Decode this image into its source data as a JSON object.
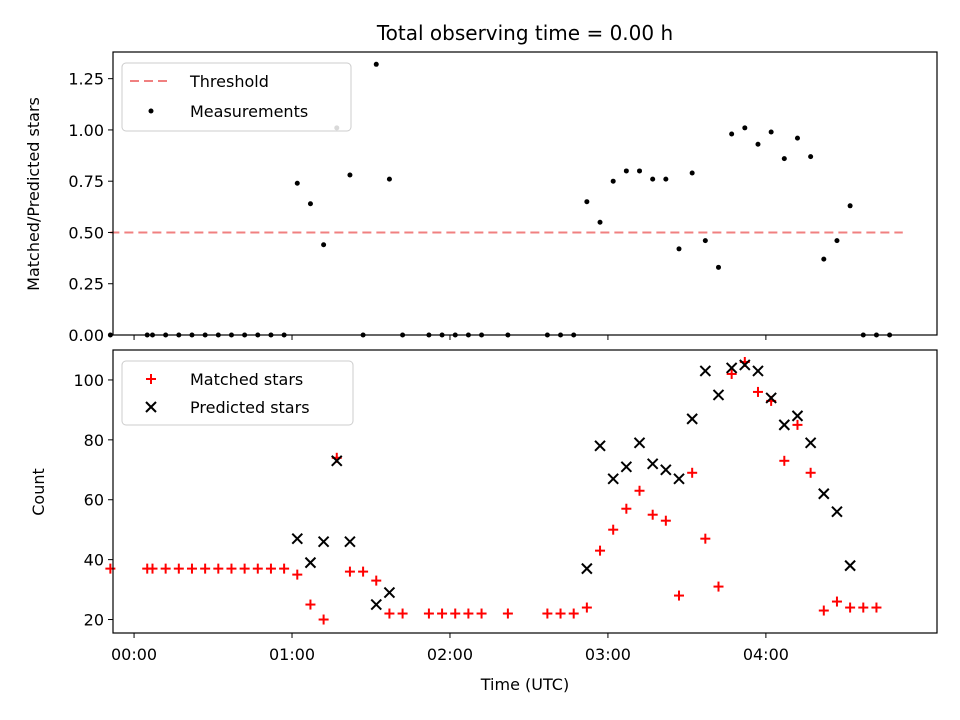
{
  "title": "Total observing time = 0.00 h",
  "colors": {
    "threshold": "#f08080",
    "measurement": "#000000",
    "matched": "#ff0000",
    "predicted": "#000000"
  },
  "chart_data": [
    {
      "type": "scatter",
      "ylabel": "Matched/Predicted stars",
      "xlim": [
        "23:52",
        "05:05"
      ],
      "ylim": [
        0,
        1.38
      ],
      "yticks": [
        "0.00",
        "0.25",
        "0.50",
        "0.75",
        "1.00",
        "1.25"
      ],
      "legend": {
        "position": "top-left",
        "entries": [
          "Threshold",
          "Measurements"
        ]
      },
      "threshold": {
        "name": "Threshold",
        "value": 0.5,
        "x_range": [
          "23:51",
          "04:52"
        ]
      },
      "series": [
        {
          "name": "Measurements",
          "points": [
            [
              "23:51",
              0
            ],
            [
              "00:05",
              0
            ],
            [
              "00:07",
              0
            ],
            [
              "00:12",
              0
            ],
            [
              "00:17",
              0
            ],
            [
              "00:22",
              0
            ],
            [
              "00:27",
              0
            ],
            [
              "00:32",
              0
            ],
            [
              "00:37",
              0
            ],
            [
              "00:42",
              0
            ],
            [
              "00:47",
              0
            ],
            [
              "00:52",
              0
            ],
            [
              "00:57",
              0
            ],
            [
              "01:02",
              0.74
            ],
            [
              "01:07",
              0.64
            ],
            [
              "01:12",
              0.44
            ],
            [
              "01:17",
              1.01
            ],
            [
              "01:22",
              0.78
            ],
            [
              "01:27",
              0
            ],
            [
              "01:32",
              1.32
            ],
            [
              "01:37",
              0.76
            ],
            [
              "01:42",
              0
            ],
            [
              "01:52",
              0
            ],
            [
              "01:57",
              0
            ],
            [
              "02:02",
              0
            ],
            [
              "02:07",
              0
            ],
            [
              "02:12",
              0
            ],
            [
              "02:22",
              0
            ],
            [
              "02:37",
              0
            ],
            [
              "02:42",
              0
            ],
            [
              "02:47",
              0
            ],
            [
              "02:52",
              0.65
            ],
            [
              "02:57",
              0.55
            ],
            [
              "03:02",
              0.75
            ],
            [
              "03:07",
              0.8
            ],
            [
              "03:12",
              0.8
            ],
            [
              "03:17",
              0.76
            ],
            [
              "03:22",
              0.76
            ],
            [
              "03:27",
              0.42
            ],
            [
              "03:32",
              0.79
            ],
            [
              "03:37",
              0.46
            ],
            [
              "03:42",
              0.33
            ],
            [
              "03:47",
              0.98
            ],
            [
              "03:52",
              1.01
            ],
            [
              "03:57",
              0.93
            ],
            [
              "04:02",
              0.99
            ],
            [
              "04:07",
              0.86
            ],
            [
              "04:12",
              0.96
            ],
            [
              "04:17",
              0.87
            ],
            [
              "04:22",
              0.37
            ],
            [
              "04:27",
              0.46
            ],
            [
              "04:32",
              0.63
            ],
            [
              "04:37",
              0
            ],
            [
              "04:42",
              0
            ],
            [
              "04:47",
              0
            ]
          ]
        }
      ]
    },
    {
      "type": "scatter",
      "xlabel": "Time (UTC)",
      "ylabel": "Count",
      "xlim": [
        "23:52",
        "05:05"
      ],
      "ylim": [
        15.5,
        110
      ],
      "xticks": [
        "00:00",
        "01:00",
        "02:00",
        "03:00",
        "04:00"
      ],
      "yticks": [
        "20",
        "40",
        "60",
        "80",
        "100"
      ],
      "legend": {
        "position": "top-left",
        "entries": [
          "Matched stars",
          "Predicted stars"
        ]
      },
      "series": [
        {
          "name": "Matched stars",
          "marker": "+",
          "points": [
            [
              "23:51",
              37
            ],
            [
              "00:05",
              37
            ],
            [
              "00:07",
              37
            ],
            [
              "00:12",
              37
            ],
            [
              "00:17",
              37
            ],
            [
              "00:22",
              37
            ],
            [
              "00:27",
              37
            ],
            [
              "00:32",
              37
            ],
            [
              "00:37",
              37
            ],
            [
              "00:42",
              37
            ],
            [
              "00:47",
              37
            ],
            [
              "00:52",
              37
            ],
            [
              "00:57",
              37
            ],
            [
              "01:02",
              35
            ],
            [
              "01:07",
              25
            ],
            [
              "01:12",
              20
            ],
            [
              "01:17",
              74
            ],
            [
              "01:22",
              36
            ],
            [
              "01:27",
              36
            ],
            [
              "01:32",
              33
            ],
            [
              "01:37",
              22
            ],
            [
              "01:42",
              22
            ],
            [
              "01:52",
              22
            ],
            [
              "01:57",
              22
            ],
            [
              "02:02",
              22
            ],
            [
              "02:07",
              22
            ],
            [
              "02:12",
              22
            ],
            [
              "02:22",
              22
            ],
            [
              "02:37",
              22
            ],
            [
              "02:42",
              22
            ],
            [
              "02:47",
              22
            ],
            [
              "02:52",
              24
            ],
            [
              "02:57",
              43
            ],
            [
              "03:02",
              50
            ],
            [
              "03:07",
              57
            ],
            [
              "03:12",
              63
            ],
            [
              "03:17",
              55
            ],
            [
              "03:22",
              53
            ],
            [
              "03:27",
              28
            ],
            [
              "03:32",
              69
            ],
            [
              "03:37",
              47
            ],
            [
              "03:42",
              31
            ],
            [
              "03:47",
              102
            ],
            [
              "03:52",
              106
            ],
            [
              "03:57",
              96
            ],
            [
              "04:02",
              93
            ],
            [
              "04:07",
              73
            ],
            [
              "04:12",
              85
            ],
            [
              "04:17",
              69
            ],
            [
              "04:22",
              23
            ],
            [
              "04:27",
              26
            ],
            [
              "04:32",
              24
            ],
            [
              "04:37",
              24
            ],
            [
              "04:42",
              24
            ]
          ]
        },
        {
          "name": "Predicted stars",
          "marker": "x",
          "points": [
            [
              "01:02",
              47
            ],
            [
              "01:07",
              39
            ],
            [
              "01:12",
              46
            ],
            [
              "01:17",
              73
            ],
            [
              "01:22",
              46
            ],
            [
              "01:32",
              25
            ],
            [
              "01:37",
              29
            ],
            [
              "02:52",
              37
            ],
            [
              "02:57",
              78
            ],
            [
              "03:02",
              67
            ],
            [
              "03:07",
              71
            ],
            [
              "03:12",
              79
            ],
            [
              "03:17",
              72
            ],
            [
              "03:22",
              70
            ],
            [
              "03:27",
              67
            ],
            [
              "03:32",
              87
            ],
            [
              "03:37",
              103
            ],
            [
              "03:42",
              95
            ],
            [
              "03:47",
              104
            ],
            [
              "03:52",
              105
            ],
            [
              "03:57",
              103
            ],
            [
              "04:02",
              94
            ],
            [
              "04:07",
              85
            ],
            [
              "04:12",
              88
            ],
            [
              "04:17",
              79
            ],
            [
              "04:22",
              62
            ],
            [
              "04:27",
              56
            ],
            [
              "04:32",
              38
            ]
          ]
        }
      ]
    }
  ]
}
